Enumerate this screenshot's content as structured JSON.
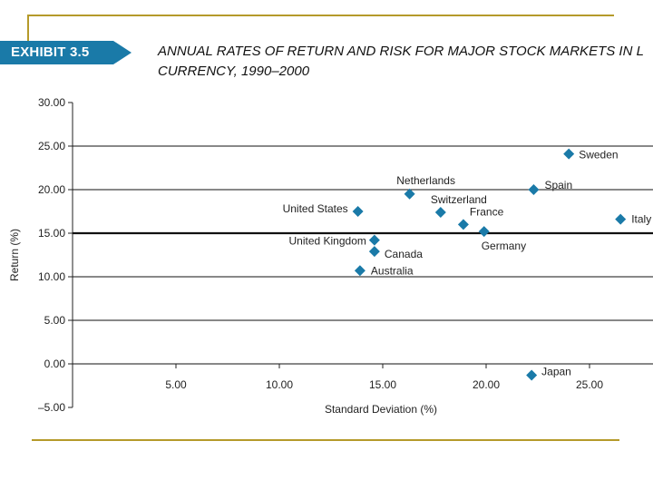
{
  "exhibit_label": "EXHIBIT 3.5",
  "title_line1": "ANNUAL RATES OF RETURN AND RISK FOR MAJOR STOCK MARKETS IN L",
  "title_line2": "CURRENCY, 1990–2000",
  "colors": {
    "marker": "#1a7aa8",
    "badge": "#1a7aa8",
    "rule": "#b59a2a"
  },
  "chart_data": {
    "type": "scatter",
    "xlabel": "Standard Deviation (%)",
    "ylabel": "Return (%)",
    "xlim": [
      0,
      28
    ],
    "ylim": [
      -5,
      30
    ],
    "xticks": [
      "5.00",
      "10.00",
      "15.00",
      "20.00",
      "25.00"
    ],
    "yticks": [
      "30.00",
      "25.00",
      "20.00",
      "15.00",
      "10.00",
      "5.00",
      "0.00",
      "–5.00"
    ],
    "grid": "horizontal",
    "points": [
      {
        "label": "Sweden",
        "x": 24.0,
        "y": 24.1
      },
      {
        "label": "Spain",
        "x": 22.3,
        "y": 20.0
      },
      {
        "label": "Netherlands",
        "x": 16.3,
        "y": 19.5
      },
      {
        "label": "United States",
        "x": 13.8,
        "y": 17.5
      },
      {
        "label": "Switzerland",
        "x": 17.8,
        "y": 17.4
      },
      {
        "label": "France",
        "x": 18.9,
        "y": 16.0
      },
      {
        "label": "Germany",
        "x": 19.9,
        "y": 15.2
      },
      {
        "label": "Italy",
        "x": 26.5,
        "y": 16.6
      },
      {
        "label": "United Kingdom",
        "x": 14.6,
        "y": 14.2
      },
      {
        "label": "Canada",
        "x": 14.6,
        "y": 12.9
      },
      {
        "label": "Australia",
        "x": 13.9,
        "y": 10.7
      },
      {
        "label": "Japan",
        "x": 22.2,
        "y": -1.3
      }
    ]
  }
}
